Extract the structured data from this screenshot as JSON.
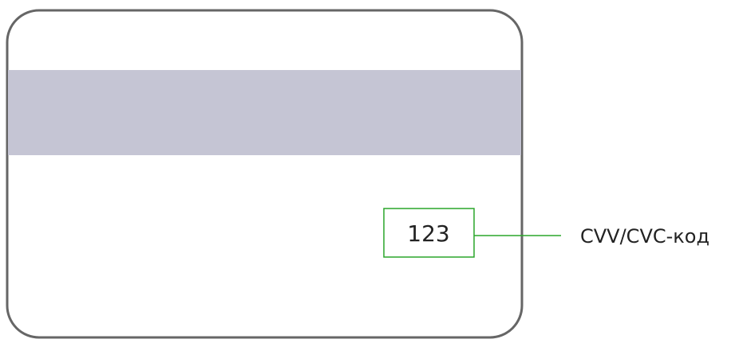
{
  "card": {
    "code": "123",
    "label": "CVV/CVC-код"
  }
}
